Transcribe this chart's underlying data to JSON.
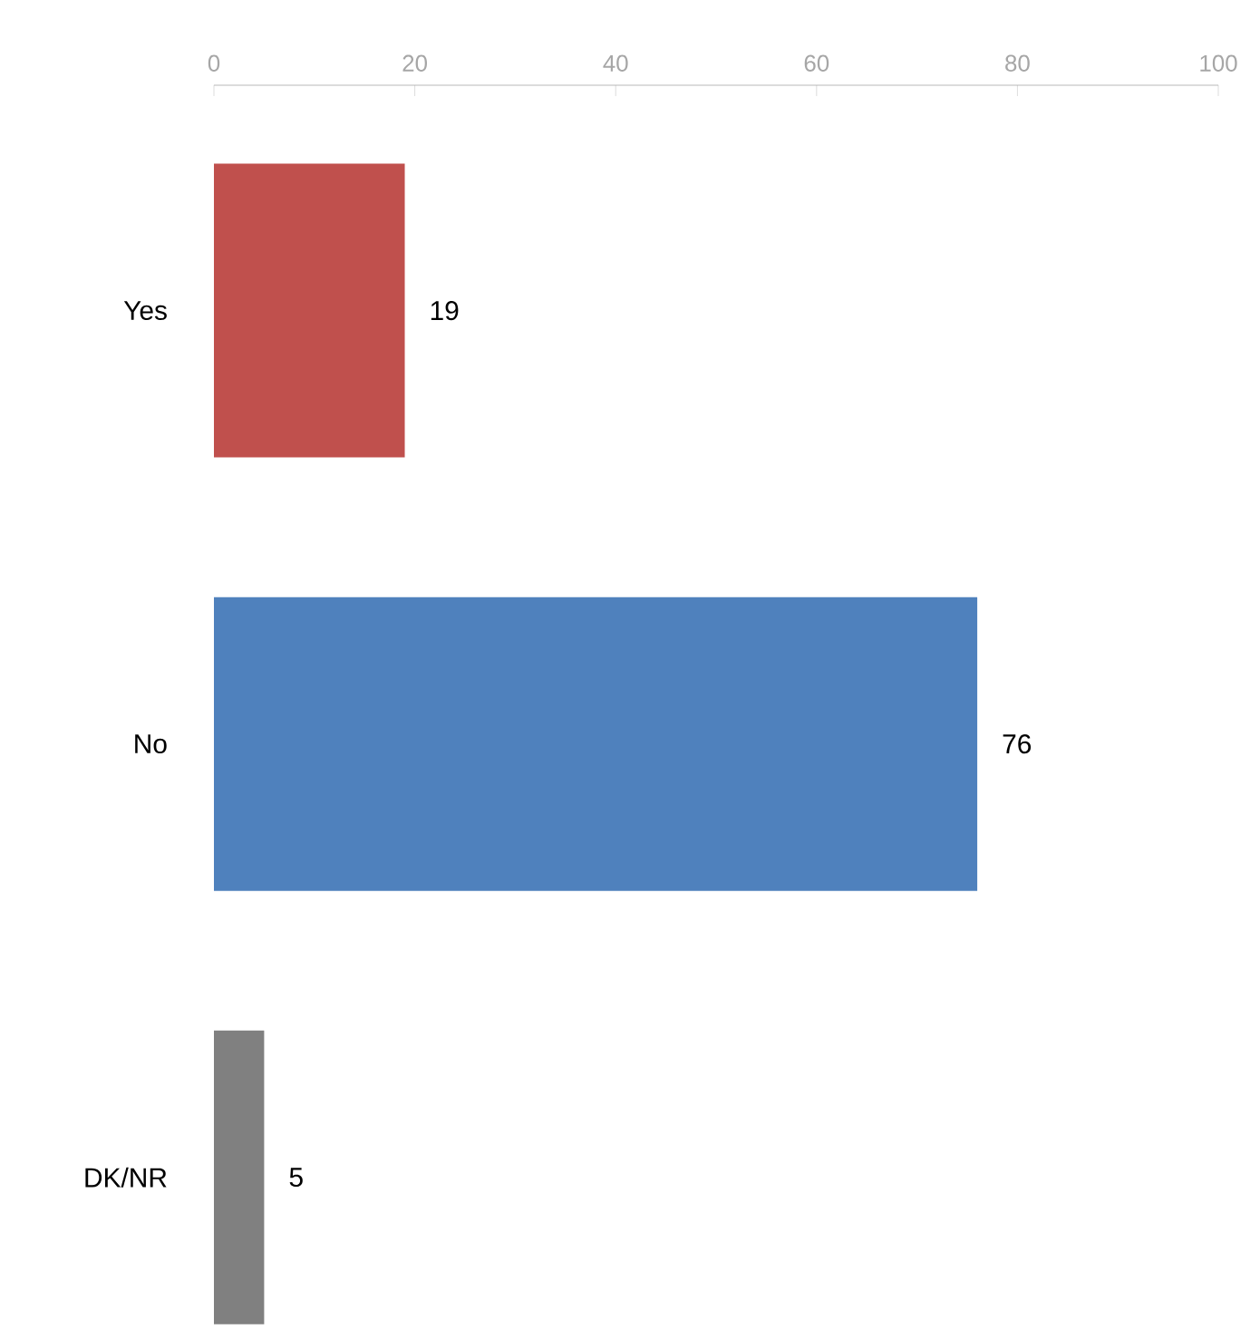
{
  "chart_data": {
    "type": "bar",
    "orientation": "horizontal",
    "categories": [
      "Yes",
      "No",
      "DK/NR"
    ],
    "values": [
      19,
      76,
      5
    ],
    "colors": [
      "#c0504d",
      "#4f81bd",
      "#808080"
    ],
    "xlim": [
      0,
      100
    ],
    "xticks": [
      0,
      20,
      40,
      60,
      80,
      100
    ],
    "data_labels": true
  }
}
